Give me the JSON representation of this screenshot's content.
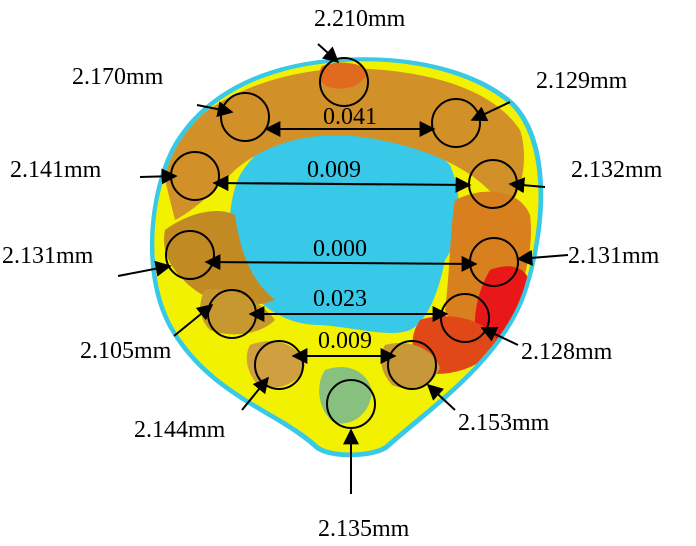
{
  "thickness_labels": [
    "2.210mm",
    "2.170mm",
    "2.129mm",
    "2.141mm",
    "2.132mm",
    "2.131mm",
    "2.131mm",
    "2.105mm",
    "2.128mm",
    "2.144mm",
    "2.153mm",
    "2.135mm"
  ],
  "difference_labels": [
    "0.041",
    "0.009",
    "0.000",
    "0.023",
    "0.009"
  ],
  "colors": {
    "yellow": "#f2f200",
    "orange": "#d29028",
    "brown_orange": "#c28a22",
    "red": "#e81818",
    "cyan_edge": "#38c8e8",
    "green_patch": "#88c080"
  }
}
